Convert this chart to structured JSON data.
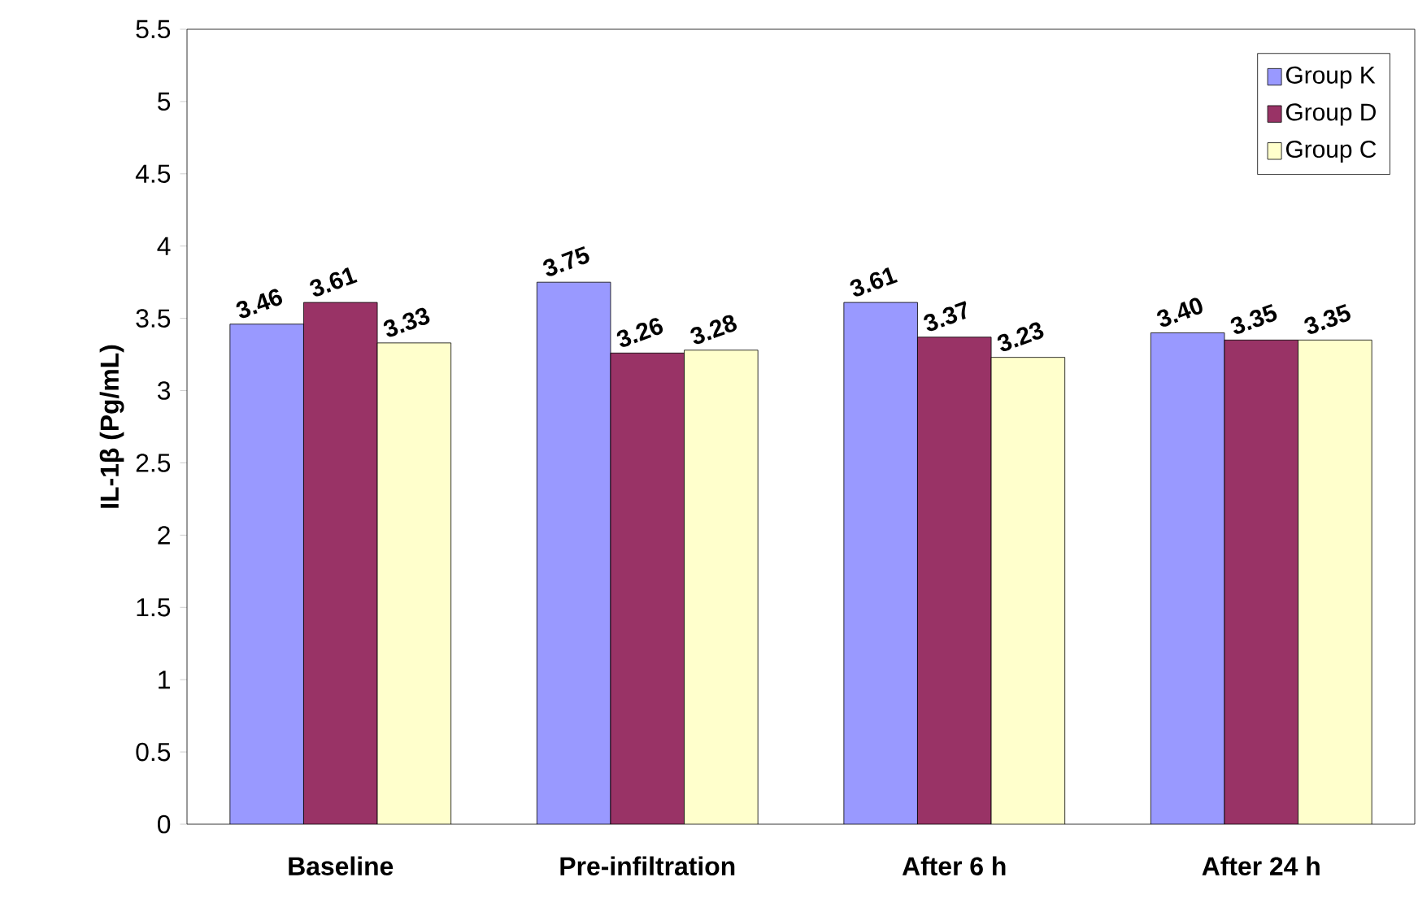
{
  "chart_data": {
    "type": "bar",
    "ylabel": "IL-1β (Pg/mL)",
    "categories": [
      "Baseline",
      "Pre-infiltration",
      "After 6 h",
      "After 24 h"
    ],
    "series": [
      {
        "name": "Group K",
        "color": "#9999ff",
        "values": [
          3.46,
          3.75,
          3.61,
          3.4
        ],
        "value_labels": [
          "3.46",
          "3.75",
          "3.61",
          "3.40"
        ]
      },
      {
        "name": "Group D",
        "color": "#993366",
        "values": [
          3.61,
          3.26,
          3.37,
          3.35
        ],
        "value_labels": [
          "3.61",
          "3.26",
          "3.37",
          "3.35"
        ]
      },
      {
        "name": "Group C",
        "color": "#ffffcc",
        "values": [
          3.33,
          3.28,
          3.23,
          3.35
        ],
        "value_labels": [
          "3.33",
          "3.28",
          "3.23",
          "3.35"
        ]
      }
    ],
    "ylim": [
      0,
      5.5
    ],
    "yticks": [
      0,
      0.5,
      1,
      1.5,
      2,
      2.5,
      3,
      3.5,
      4,
      4.5,
      5,
      5.5
    ],
    "grid": false,
    "legend": "top right"
  }
}
